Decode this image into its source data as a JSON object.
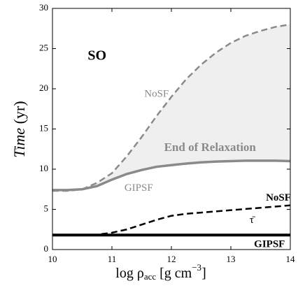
{
  "chart_data": {
    "type": "line",
    "x_label": [
      "log ρ",
      "acc",
      " [g cm",
      "−3",
      "]"
    ],
    "y_label": [
      "Time",
      " (yr)"
    ],
    "annotations": [
      "SO",
      "End of Relaxation",
      "τ̄"
    ],
    "x": [
      10,
      10.25,
      10.5,
      10.75,
      11,
      11.25,
      11.5,
      11.75,
      12,
      12.25,
      12.5,
      12.75,
      13,
      13.25,
      13.5,
      13.75,
      14
    ],
    "series": [
      {
        "name": "NoSF",
        "color": "#8a8a8a",
        "dashed": true,
        "values": [
          7.3,
          7.3,
          7.5,
          8.3,
          9.5,
          11.6,
          14,
          16.6,
          19,
          21.2,
          23,
          24.5,
          25.7,
          26.6,
          27.2,
          27.7,
          28
        ]
      },
      {
        "name": "GIPSF",
        "color": "#8a8a8a",
        "dashed": false,
        "values": [
          7.4,
          7.4,
          7.5,
          7.9,
          8.7,
          9.4,
          9.9,
          10.3,
          10.5,
          10.7,
          10.85,
          10.95,
          11.0,
          11.05,
          11.05,
          11.05,
          11.0
        ]
      },
      {
        "name": "NoSF",
        "color": "#000000",
        "dashed": true,
        "values": [
          1.8,
          1.8,
          1.8,
          1.85,
          2.1,
          2.5,
          3.1,
          3.7,
          4.2,
          4.45,
          4.6,
          4.75,
          4.9,
          5.05,
          5.2,
          5.35,
          5.5
        ]
      },
      {
        "name": "GIPSF",
        "color": "#000000",
        "dashed": false,
        "values": [
          1.8,
          1.8,
          1.8,
          1.8,
          1.8,
          1.8,
          1.8,
          1.8,
          1.8,
          1.8,
          1.8,
          1.8,
          1.8,
          1.8,
          1.8,
          1.8,
          1.8
        ]
      }
    ],
    "shade_color": "#efefef",
    "xlim": [
      10,
      14
    ],
    "xticks": [
      10,
      11,
      12,
      13,
      14
    ],
    "ylim": [
      0,
      30
    ],
    "yticks": [
      0,
      5,
      10,
      15,
      20,
      25,
      30
    ]
  }
}
